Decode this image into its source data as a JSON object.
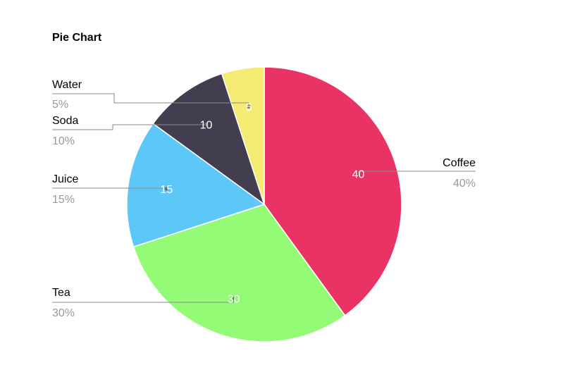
{
  "chart_data": {
    "type": "pie",
    "title": "Pie Chart",
    "slices": [
      {
        "label": "Coffee",
        "value": 40,
        "percent": "40%",
        "color": "#E93365"
      },
      {
        "label": "Tea",
        "value": 30,
        "percent": "30%",
        "color": "#94FB77"
      },
      {
        "label": "Juice",
        "value": 15,
        "percent": "15%",
        "color": "#5DC8F8"
      },
      {
        "label": "Soda",
        "value": 10,
        "percent": "10%",
        "color": "#433D50"
      },
      {
        "label": "Water",
        "value": 5,
        "percent": "5%",
        "color": "#F5EA72"
      }
    ]
  }
}
